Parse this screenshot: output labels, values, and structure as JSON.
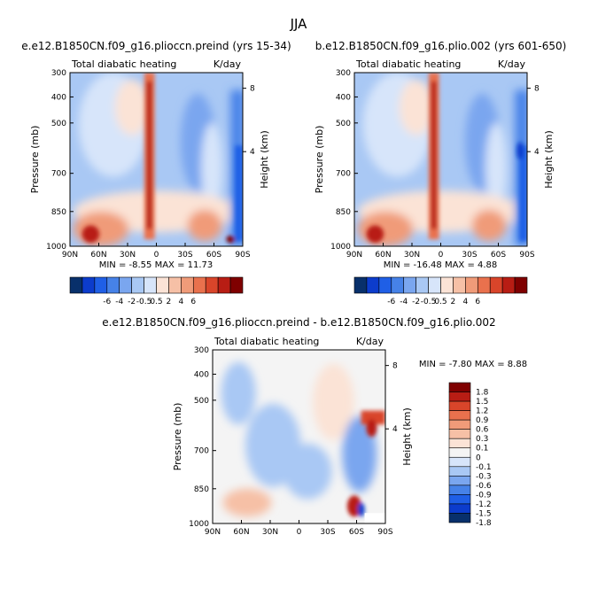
{
  "figure": {
    "title": "JJA"
  },
  "colors": {
    "levels12": [
      "#08306b",
      "#0c3ccc",
      "#1f5fe6",
      "#4682e8",
      "#7aa6ef",
      "#a9c8f4",
      "#d7e5fa",
      "#fbe3d6",
      "#f6c0a6",
      "#f09b79",
      "#e9714d",
      "#d9452a",
      "#b81d14",
      "#7f0000"
    ],
    "levels18": [
      "#08306b",
      "#0c3ccc",
      "#1f5fe6",
      "#4682e8",
      "#7aa6ef",
      "#a9c8f4",
      "#d7e5fa",
      "#f4f4f4",
      "#fbe3d6",
      "#f6c0a6",
      "#f09b79",
      "#e9714d",
      "#d9452a",
      "#b81d14",
      "#7f0000"
    ]
  },
  "chart_data": [
    {
      "type": "heatmap",
      "title": "e.e12.B1850CN.f09_g16.plioccn.preind (yrs 15-34)",
      "subtitle_left": "Total diabatic heating",
      "subtitle_right": "K/day",
      "xlabel": "",
      "ylabel": "Pressure (mb)",
      "y2label": "Height (km)",
      "x_ticks": [
        "90N",
        "60N",
        "30N",
        "0",
        "30S",
        "60S",
        "90S"
      ],
      "y_ticks": [
        "300",
        "400",
        "500",
        "700",
        "850",
        "1000"
      ],
      "y2_ticks": [
        "8",
        "4"
      ],
      "stats": "MIN =   -8.55   MAX =  11.73",
      "colorbar_labels": [
        "-6",
        "-4",
        "-2",
        "-0.5",
        "0.5",
        "2",
        "4",
        "6"
      ],
      "variant": 0
    },
    {
      "type": "heatmap",
      "title": "b.e12.B1850CN.f09_g16.plio.002 (yrs 601-650)",
      "subtitle_left": "Total diabatic heating",
      "subtitle_right": "K/day",
      "xlabel": "",
      "ylabel": "Pressure (mb)",
      "y2label": "Height (km)",
      "x_ticks": [
        "90N",
        "60N",
        "30N",
        "0",
        "30S",
        "60S",
        "90S"
      ],
      "y_ticks": [
        "300",
        "400",
        "500",
        "700",
        "850",
        "1000"
      ],
      "y2_ticks": [
        "8",
        "4"
      ],
      "stats": "MIN =  -16.48   MAX =    4.88",
      "colorbar_labels": [
        "-6",
        "-4",
        "-2",
        "-0.5",
        "0.5",
        "2",
        "4",
        "6"
      ],
      "variant": 1
    },
    {
      "type": "heatmap",
      "title": "e.e12.B1850CN.f09_g16.plioccn.preind - b.e12.B1850CN.f09_g16.plio.002",
      "subtitle_left": "Total diabatic heating",
      "subtitle_right": "K/day",
      "xlabel": "",
      "ylabel": "Pressure (mb)",
      "y2label": "Height (km)",
      "x_ticks": [
        "90N",
        "60N",
        "30N",
        "0",
        "30S",
        "60S",
        "90S"
      ],
      "y_ticks": [
        "300",
        "400",
        "500",
        "700",
        "850",
        "1000"
      ],
      "y2_ticks": [
        "8",
        "4"
      ],
      "stats": "MIN =   -7.80   MAX =   8.88",
      "colorbar_labels": [
        "1.8",
        "1.5",
        "1.2",
        "0.9",
        "0.6",
        "0.3",
        "0.1",
        "0",
        "-0.1",
        "-0.3",
        "-0.6",
        "-0.9",
        "-1.2",
        "-1.5",
        "-1.8"
      ],
      "variant": 2
    }
  ]
}
